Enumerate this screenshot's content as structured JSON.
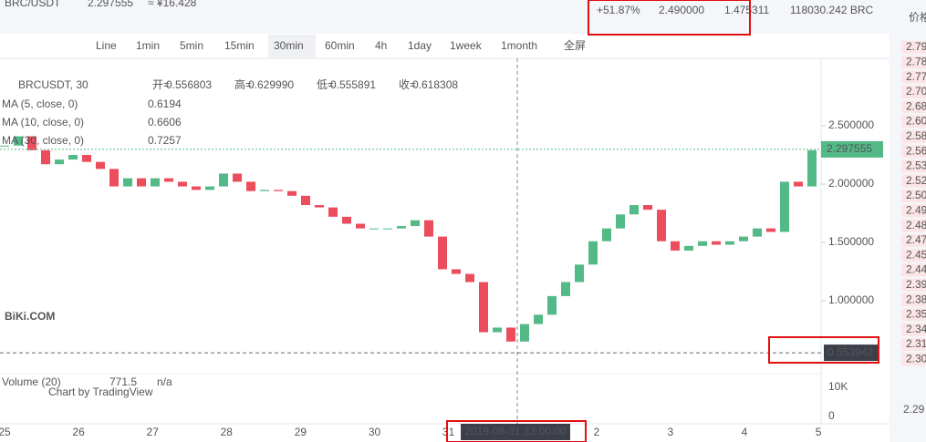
{
  "header": {
    "pair": "BRC/USDT",
    "price": "2.297555",
    "cny": "≈ ¥16.428",
    "change": "+51.87%",
    "high": "2.490000",
    "low": "1.475311",
    "volume": "118030.242 BRC"
  },
  "toolbar": {
    "intervals": [
      "Line",
      "1min",
      "5min",
      "15min",
      "30min",
      "60min",
      "4h",
      "1day",
      "1week",
      "1month"
    ],
    "selected": "30min",
    "fullscreen": "全屏"
  },
  "legend": {
    "symbol": "BRCUSDT, 30",
    "ohlc": [
      {
        "label": "开=",
        "value": "0.556803"
      },
      {
        "label": "高=",
        "value": "0.629990"
      },
      {
        "label": "低=",
        "value": "0.555891"
      },
      {
        "label": "收=",
        "value": "0.618308"
      }
    ],
    "ma": [
      {
        "name": "MA (5, close, 0)",
        "value": "0.6194",
        "color": "#f0a030"
      },
      {
        "name": "MA (10, close, 0)",
        "value": "0.6606",
        "color": "#2aa898"
      },
      {
        "name": "MA (30, close, 0)",
        "value": "0.7257",
        "color": "#d06ad8"
      }
    ],
    "volume": {
      "name": "Volume (20)",
      "value": "771.5",
      "extra": "n/a"
    }
  },
  "chart_data": {
    "type": "candlestick",
    "up_color": "#53b987",
    "down_color": "#eb4d5c",
    "close": [
      2.33,
      2.41,
      2.29,
      2.17,
      2.21,
      2.25,
      2.19,
      2.13,
      1.98,
      2.05,
      1.98,
      2.05,
      2.02,
      1.98,
      1.95,
      1.98,
      2.09,
      2.02,
      1.94,
      1.95,
      1.94,
      1.9,
      1.82,
      1.8,
      1.72,
      1.66,
      1.62,
      1.62,
      1.62,
      1.64,
      1.69,
      1.55,
      1.27,
      1.23,
      1.16,
      0.73,
      0.77,
      0.65,
      0.8,
      0.88,
      1.04,
      1.16,
      1.31,
      1.51,
      1.62,
      1.74,
      1.82,
      1.78,
      1.51,
      1.43,
      1.47,
      1.51,
      1.48,
      1.51,
      1.55,
      1.62,
      1.59,
      2.02,
      1.98,
      2.29
    ],
    "ylim": [
      0.375,
      3.0703
    ],
    "yticks": [
      {
        "value": 2.5,
        "label": "2.500000"
      },
      {
        "value": 2,
        "label": "2.000000"
      },
      {
        "value": 1.5,
        "label": "1.500000"
      },
      {
        "value": 1,
        "label": "1.000000"
      }
    ],
    "last_price": 2.297555,
    "low_marker": 0.553942,
    "x_labels": [
      "25",
      "26",
      "27",
      "28",
      "29",
      "30",
      "31",
      null,
      "2",
      "3",
      "4",
      "5"
    ],
    "crosshair": "2019-08-31 23:00:00",
    "volume_ticks": [
      "10K",
      "0"
    ]
  },
  "branding": {
    "logo": "BiKi.COM",
    "credit": "Chart by TradingView"
  },
  "orderbook": {
    "header": "价格",
    "asks": [
      "2.79",
      "2.78",
      "2.77",
      "2.70",
      "2.68",
      "2.60",
      "2.58",
      "2.56",
      "2.53",
      "2.52",
      "2.50",
      "2.49",
      "2.48",
      "2.47",
      "2.45",
      "2.44",
      "2.39",
      "2.38",
      "2.35",
      "2.34",
      "2.31",
      "2.30"
    ],
    "last": "2.29"
  }
}
